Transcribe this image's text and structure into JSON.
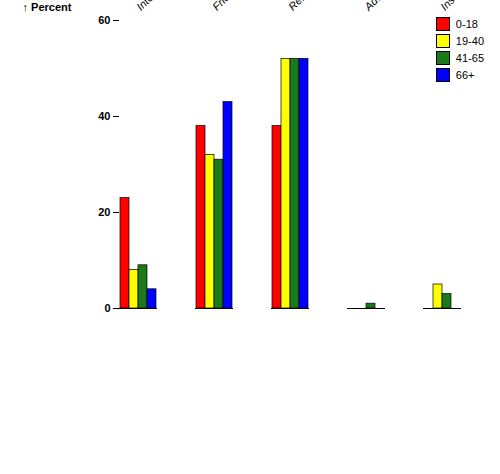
{
  "chart_data": {
    "type": "bar",
    "categories": [
      "Internet search/social media",
      "Friend/family referral",
      "Referred by medical professional",
      "Advertising",
      "Insurance company"
    ],
    "series": [
      {
        "name": "0-18",
        "color": "#FF0000",
        "values": [
          23,
          38,
          38,
          0,
          0
        ]
      },
      {
        "name": "19-40",
        "color": "#FFFF00",
        "values": [
          8,
          32,
          52,
          0,
          5
        ]
      },
      {
        "name": "41-65",
        "color": "#1A7A1A",
        "values": [
          9,
          31,
          52,
          1,
          3
        ]
      },
      {
        "name": "66+",
        "color": "#0000FF",
        "values": [
          4,
          43,
          52,
          0,
          0
        ]
      }
    ],
    "ylabel": "Percent",
    "ylim": [
      0,
      60
    ],
    "yticks": [
      0,
      20,
      40,
      60
    ],
    "grid": false,
    "legend": "upper right"
  }
}
